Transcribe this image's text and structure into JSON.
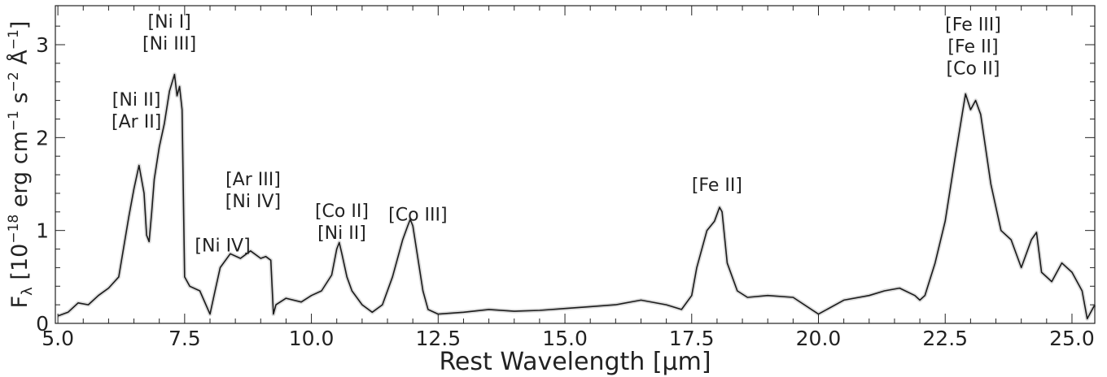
{
  "chart_data": {
    "type": "line",
    "xlabel": "Rest Wavelength [μm]",
    "ylabel": "F_λ [10^−18 erg cm^−1 s^−2 Å^−1]",
    "ylabel_parts": {
      "base": "F",
      "sub": "λ",
      "t1": " [10",
      "sup1": "−18",
      "t2": " erg cm",
      "sup2": "−1",
      "t3": " s",
      "sup3": "−2",
      "t4": " Å",
      "sup4": "−1",
      "t5": "]"
    },
    "xlim": [
      4.95,
      25.45
    ],
    "ylim": [
      0,
      3.42
    ],
    "xticks": [
      5.0,
      7.5,
      10.0,
      12.5,
      15.0,
      17.5,
      20.0,
      22.5,
      25.0
    ],
    "xticklabels": [
      "5.0",
      "7.5",
      "10.0",
      "12.5",
      "15.0",
      "17.5",
      "20.0",
      "22.5",
      "25.0"
    ],
    "yticks": [
      0,
      1,
      2,
      3
    ],
    "yticklabels": [
      "0",
      "1",
      "2",
      "3"
    ],
    "grid": false,
    "colors": {
      "line": "#1a1a1a",
      "raw": "#dcdcdc"
    },
    "series": [
      {
        "x": [
          5.0,
          5.2,
          5.4,
          5.6,
          5.8,
          6.0,
          6.2,
          6.4,
          6.5,
          6.6,
          6.7,
          6.75,
          6.8,
          6.85,
          6.9,
          7.0,
          7.1,
          7.2,
          7.3,
          7.35,
          7.4,
          7.45,
          7.5,
          7.6,
          7.8,
          8.0,
          8.1,
          8.2,
          8.4,
          8.6,
          8.8,
          9.0,
          9.1,
          9.2,
          9.25,
          9.3,
          9.5,
          9.8,
          10.0,
          10.2,
          10.4,
          10.5,
          10.55,
          10.6,
          10.7,
          10.8,
          11.0,
          11.2,
          11.4,
          11.6,
          11.8,
          11.9,
          11.95,
          12.0,
          12.1,
          12.2,
          12.3,
          12.5,
          13.0,
          13.5,
          14.0,
          14.5,
          15.0,
          15.5,
          16.0,
          16.5,
          17.0,
          17.3,
          17.5,
          17.6,
          17.8,
          17.95,
          18.05,
          18.1,
          18.2,
          18.4,
          18.6,
          19.0,
          19.5,
          20.0,
          20.5,
          21.0,
          21.3,
          21.6,
          21.9,
          22.0,
          22.1,
          22.3,
          22.5,
          22.7,
          22.85,
          22.9,
          23.0,
          23.1,
          23.2,
          23.4,
          23.6,
          23.8,
          24.0,
          24.2,
          24.3,
          24.4,
          24.6,
          24.8,
          25.0,
          25.2,
          25.3,
          25.45
        ],
        "y": [
          0.08,
          0.12,
          0.22,
          0.2,
          0.3,
          0.38,
          0.5,
          1.15,
          1.45,
          1.7,
          1.4,
          0.95,
          0.88,
          1.2,
          1.55,
          1.9,
          2.15,
          2.5,
          2.68,
          2.45,
          2.55,
          2.3,
          0.5,
          0.4,
          0.35,
          0.1,
          0.35,
          0.6,
          0.75,
          0.7,
          0.78,
          0.7,
          0.72,
          0.68,
          0.1,
          0.2,
          0.27,
          0.23,
          0.3,
          0.35,
          0.52,
          0.8,
          0.87,
          0.75,
          0.5,
          0.35,
          0.2,
          0.12,
          0.2,
          0.5,
          0.9,
          1.05,
          1.12,
          1.05,
          0.7,
          0.35,
          0.15,
          0.1,
          0.12,
          0.15,
          0.13,
          0.14,
          0.16,
          0.18,
          0.2,
          0.25,
          0.2,
          0.15,
          0.3,
          0.6,
          1.0,
          1.1,
          1.25,
          1.2,
          0.65,
          0.35,
          0.28,
          0.3,
          0.28,
          0.1,
          0.25,
          0.3,
          0.35,
          0.38,
          0.3,
          0.25,
          0.3,
          0.65,
          1.1,
          1.8,
          2.3,
          2.47,
          2.3,
          2.4,
          2.25,
          1.5,
          1.0,
          0.9,
          0.6,
          0.9,
          0.98,
          0.55,
          0.45,
          0.65,
          0.55,
          0.35,
          0.05,
          0.2
        ]
      }
    ],
    "annotations": [
      {
        "lines": [
          "[Ni I]",
          "[Ni III]"
        ],
        "x": 7.2,
        "y": 3.36
      },
      {
        "lines": [
          "[Ni II]",
          "[Ar II]"
        ],
        "x": 6.55,
        "y": 2.52
      },
      {
        "lines": [
          "[Ar III]",
          "[Ni IV]"
        ],
        "x": 8.85,
        "y": 1.66
      },
      {
        "lines": [
          "[Ni IV]"
        ],
        "x": 8.25,
        "y": 0.95
      },
      {
        "lines": [
          "[Co II]",
          "[Ni II]"
        ],
        "x": 10.6,
        "y": 1.32
      },
      {
        "lines": [
          "[Co III]"
        ],
        "x": 12.1,
        "y": 1.28
      },
      {
        "lines": [
          "[Fe II]"
        ],
        "x": 18.0,
        "y": 1.6
      },
      {
        "lines": [
          "[Fe III]",
          "[Fe II]",
          "[Co II]"
        ],
        "x": 23.05,
        "y": 3.33
      }
    ]
  }
}
